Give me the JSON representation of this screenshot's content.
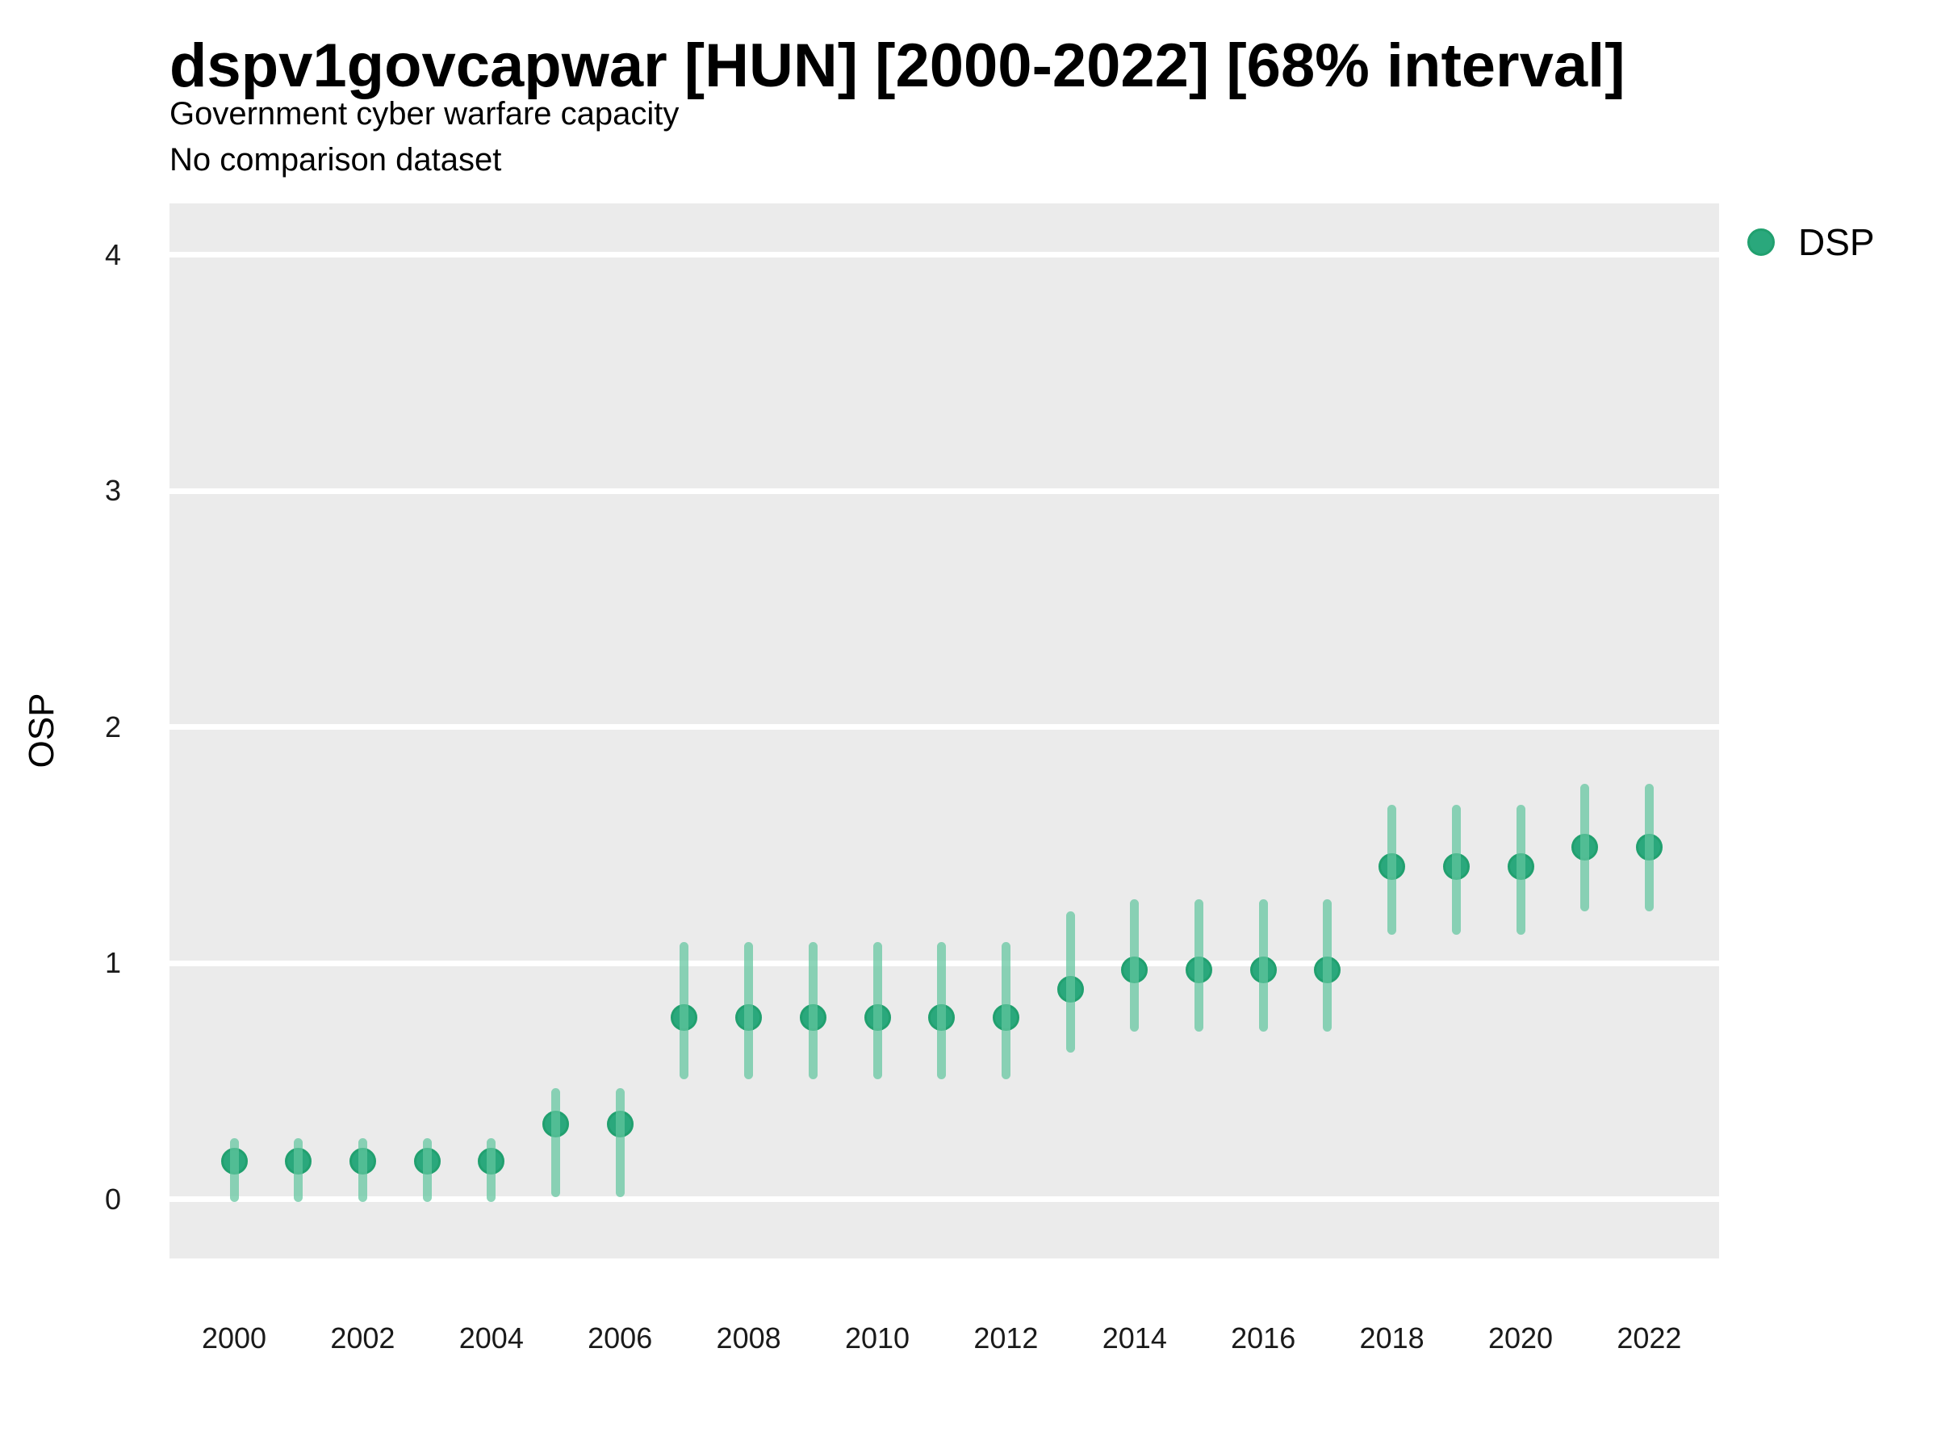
{
  "colors": {
    "point_fill": "#2AA87C",
    "point_border": "#21A06F",
    "interval_bar": "rgba(97,197,158,0.72)",
    "panel_background": "#EBEBEB",
    "gridline": "#FFFFFF",
    "tick_text": "#1a1a1a",
    "title_text": "#000000"
  },
  "chart_data": {
    "type": "scatter",
    "title": "dspv1govcapwar [HUN] [2000-2022] [68% interval]",
    "subtitle": "Government cyber warfare capacity",
    "note": "No comparison dataset",
    "xlabel": "",
    "ylabel": "OSP",
    "ylim": [
      -0.25,
      4.22
    ],
    "xlim": [
      1999,
      2023.1
    ],
    "y_ticks": [
      0,
      1,
      2,
      3,
      4
    ],
    "x_ticks": [
      2000,
      2002,
      2004,
      2006,
      2008,
      2010,
      2012,
      2014,
      2016,
      2018,
      2020,
      2022
    ],
    "grid": "horizontal-major-only",
    "legend_position": "right-top",
    "interval_level": "68%",
    "series": [
      {
        "name": "DSP",
        "years": [
          2000,
          2001,
          2002,
          2003,
          2004,
          2005,
          2006,
          2007,
          2008,
          2009,
          2010,
          2011,
          2012,
          2013,
          2014,
          2015,
          2016,
          2017,
          2018,
          2019,
          2020,
          2021,
          2022
        ],
        "values": [
          0.16,
          0.16,
          0.16,
          0.16,
          0.16,
          0.32,
          0.32,
          0.77,
          0.77,
          0.77,
          0.77,
          0.77,
          0.77,
          0.89,
          0.97,
          0.97,
          0.97,
          0.97,
          1.41,
          1.41,
          1.41,
          1.49,
          1.49
        ],
        "interval_low": [
          -0.01,
          -0.01,
          -0.01,
          -0.01,
          -0.01,
          0.01,
          0.01,
          0.51,
          0.51,
          0.51,
          0.51,
          0.51,
          0.51,
          0.62,
          0.71,
          0.71,
          0.71,
          0.71,
          1.12,
          1.12,
          1.12,
          1.22,
          1.22
        ],
        "interval_high": [
          0.26,
          0.26,
          0.26,
          0.26,
          0.26,
          0.47,
          0.47,
          1.09,
          1.09,
          1.09,
          1.09,
          1.09,
          1.09,
          1.22,
          1.27,
          1.27,
          1.27,
          1.27,
          1.67,
          1.67,
          1.67,
          1.76,
          1.76
        ]
      }
    ]
  }
}
